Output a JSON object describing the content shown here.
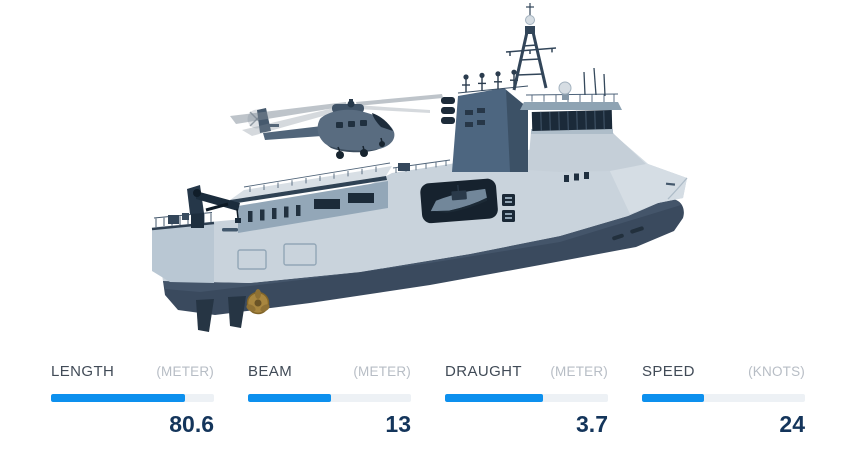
{
  "theme": {
    "accent": "#0d90ee",
    "track": "#edf1f5",
    "label": "#414b57",
    "unit": "#b7bdc5",
    "value": "#14355b"
  },
  "hero": {
    "illustration": "3D rendering of a naval offshore support vessel with a helicopter hovering over the aft deck"
  },
  "specs": {
    "items": [
      {
        "id": "length",
        "label": "LENGTH",
        "unit": "(METER)",
        "value": "80.6",
        "percent": 82
      },
      {
        "id": "beam",
        "label": "BEAM",
        "unit": "(METER)",
        "value": "13",
        "percent": 51
      },
      {
        "id": "draught",
        "label": "DRAUGHT",
        "unit": "(METER)",
        "value": "3.7",
        "percent": 60
      },
      {
        "id": "speed",
        "label": "SPEED",
        "unit": "(KNOTS)",
        "value": "24",
        "percent": 38
      }
    ]
  }
}
